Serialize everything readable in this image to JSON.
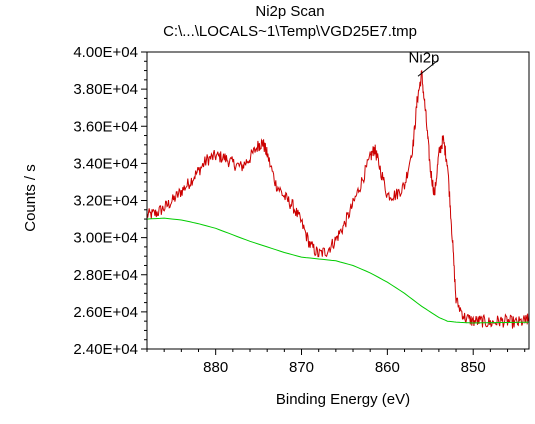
{
  "chart_data": {
    "type": "line",
    "title": "Ni2p Scan",
    "subtitle": "C:\\...\\LOCALS~1\\Temp\\VGD25E7.tmp",
    "xlabel": "Binding Energy (eV)",
    "ylabel": "Counts / s",
    "x_reversed": true,
    "xlim": [
      888.0,
      843.5
    ],
    "ylim": [
      24000,
      40000
    ],
    "x_ticks": [
      880,
      870,
      860,
      850
    ],
    "y_ticks": [
      24000,
      26000,
      28000,
      30000,
      32000,
      34000,
      36000,
      38000,
      40000
    ],
    "y_tick_labels": [
      "2.40E+04",
      "2.60E+04",
      "2.80E+04",
      "3.00E+04",
      "3.20E+04",
      "3.40E+04",
      "3.60E+04",
      "3.80E+04",
      "4.00E+04"
    ],
    "annotations": [
      {
        "text": "Ni2p",
        "x": 856.2,
        "y": 38800
      }
    ],
    "series": [
      {
        "color": "#cc0000",
        "x": [
          888.0,
          887.0,
          886.0,
          885.0,
          884.0,
          883.0,
          882.0,
          881.0,
          880.0,
          879.0,
          878.0,
          877.0,
          876.0,
          875.0,
          874.5,
          874.0,
          873.0,
          872.0,
          871.0,
          870.0,
          869.0,
          868.0,
          867.0,
          866.0,
          865.0,
          864.0,
          863.0,
          862.0,
          861.5,
          861.0,
          860.0,
          859.0,
          858.0,
          857.0,
          856.5,
          856.0,
          855.5,
          855.0,
          854.5,
          854.0,
          853.5,
          853.0,
          852.5,
          852.0,
          851.0,
          850.0,
          849.0,
          848.0,
          847.0,
          846.0,
          845.0,
          844.0,
          843.5
        ],
        "y": [
          31200,
          31300,
          31600,
          32000,
          32500,
          33000,
          33600,
          34200,
          34400,
          34300,
          34000,
          33800,
          34300,
          35000,
          35100,
          34500,
          32900,
          32200,
          31700,
          30800,
          29600,
          29100,
          29300,
          29900,
          30700,
          31800,
          33000,
          34300,
          34800,
          34000,
          32300,
          32300,
          32800,
          35000,
          37500,
          38800,
          36500,
          33700,
          32300,
          34500,
          35300,
          34000,
          30500,
          26600,
          25700,
          25500,
          25500,
          25400,
          25500,
          25500,
          25400,
          25500,
          25600
        ]
      },
      {
        "color": "#00cc00",
        "x": [
          888.0,
          886.0,
          884.0,
          882.0,
          880.0,
          878.0,
          876.0,
          874.0,
          872.0,
          870.0,
          868.0,
          866.0,
          864.0,
          862.0,
          860.0,
          858.0,
          856.0,
          855.0,
          854.0,
          853.0,
          852.0,
          851.0,
          850.0,
          848.0,
          846.0,
          844.0,
          843.5
        ],
        "y": [
          31000,
          31050,
          30950,
          30750,
          30500,
          30150,
          29800,
          29500,
          29200,
          28950,
          28850,
          28750,
          28500,
          28100,
          27600,
          27000,
          26300,
          26000,
          25700,
          25500,
          25450,
          25420,
          25400,
          25420,
          25430,
          25440,
          25450
        ]
      }
    ]
  }
}
